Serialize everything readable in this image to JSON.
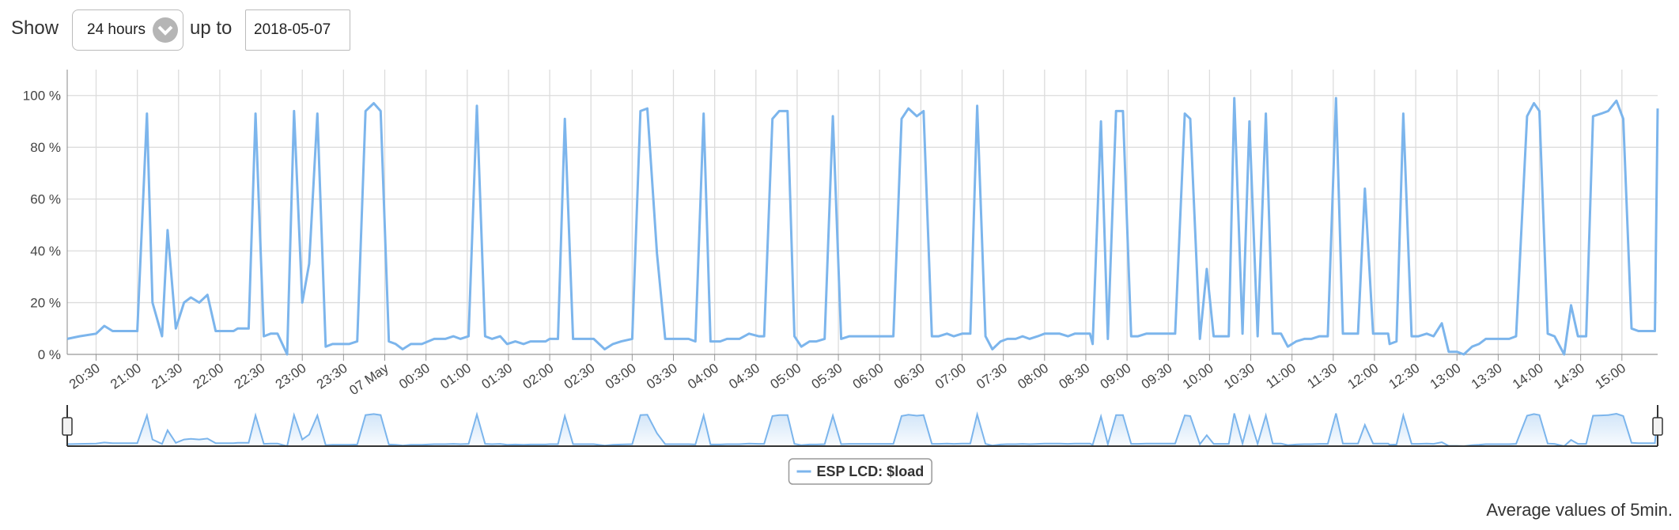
{
  "controls": {
    "show_label": "Show",
    "range": "24 hours",
    "up_to_label": "up to",
    "date": "2018-05-07"
  },
  "chart_data": {
    "type": "line",
    "x": [
      "20:09",
      "20:18",
      "20:30",
      "20:36",
      "20:42",
      "21:00",
      "21:07",
      "21:11",
      "21:18",
      "21:22",
      "21:28",
      "21:34",
      "21:39",
      "21:45",
      "21:51",
      "21:57",
      "22:10",
      "22:13",
      "22:21",
      "22:26",
      "22:32",
      "22:37",
      "22:42",
      "22:49",
      "22:54",
      "23:00",
      "23:05",
      "23:11",
      "23:17",
      "23:22",
      "23:34",
      "23:40",
      "23:46",
      "23:52",
      "23:57",
      "00:03",
      "00:08",
      "00:13",
      "00:19",
      "00:27",
      "00:36",
      "00:44",
      "00:50",
      "00:55",
      "01:01",
      "01:07",
      "01:13",
      "01:18",
      "01:24",
      "01:29",
      "01:35",
      "01:41",
      "01:46",
      "01:57",
      "02:00",
      "02:06",
      "02:11",
      "02:17",
      "02:32",
      "02:40",
      "02:46",
      "02:52",
      "03:00",
      "03:06",
      "03:11",
      "03:18",
      "03:24",
      "03:41",
      "03:46",
      "03:52",
      "03:57",
      "04:04",
      "04:09",
      "04:18",
      "04:25",
      "04:32",
      "04:36",
      "04:42",
      "04:47",
      "04:53",
      "04:58",
      "05:03",
      "05:09",
      "05:14",
      "05:20",
      "05:26",
      "05:32",
      "05:38",
      "05:59",
      "06:10",
      "06:16",
      "06:21",
      "06:27",
      "06:32",
      "06:38",
      "06:43",
      "06:49",
      "06:54",
      "07:00",
      "07:06",
      "07:11",
      "07:17",
      "07:22",
      "07:28",
      "07:33",
      "07:39",
      "07:44",
      "07:49",
      "07:55",
      "08:00",
      "08:11",
      "08:17",
      "08:22",
      "08:28",
      "08:33",
      "08:35",
      "08:41",
      "08:46",
      "08:52",
      "08:57",
      "09:03",
      "09:08",
      "09:14",
      "09:19",
      "09:35",
      "09:42",
      "09:46",
      "09:53",
      "09:58",
      "10:03",
      "10:14",
      "10:18",
      "10:24",
      "10:29",
      "10:35",
      "10:41",
      "10:46",
      "10:52",
      "10:57",
      "11:03",
      "11:09",
      "11:14",
      "11:20",
      "11:26",
      "11:32",
      "11:37",
      "11:42",
      "11:48",
      "11:53",
      "11:59",
      "12:04",
      "12:10",
      "12:11",
      "12:16",
      "12:21",
      "12:27",
      "12:32",
      "12:38",
      "12:43",
      "12:49",
      "12:54",
      "13:00",
      "13:05",
      "13:11",
      "13:16",
      "13:21",
      "13:38",
      "13:43",
      "13:51",
      "13:56",
      "14:00",
      "14:06",
      "14:11",
      "14:18",
      "14:23",
      "14:28",
      "14:34",
      "14:39",
      "14:45",
      "14:50",
      "14:56",
      "15:01",
      "15:07",
      "15:12",
      "15:24",
      "15:26"
    ],
    "series": [
      {
        "name": "ESP LCD: $load",
        "color": "#7cb5ec",
        "values": [
          6,
          7,
          8,
          11,
          9,
          9,
          93,
          20,
          7,
          48,
          10,
          20,
          22,
          20,
          23,
          9,
          9,
          10,
          10,
          93,
          7,
          8,
          8,
          0,
          94,
          20,
          35,
          93,
          3,
          4,
          4,
          5,
          94,
          97,
          94,
          5,
          4,
          2,
          4,
          4,
          6,
          6,
          7,
          6,
          7,
          96,
          7,
          6,
          7,
          4,
          5,
          4,
          5,
          5,
          6,
          6,
          91,
          6,
          6,
          2,
          4,
          5,
          6,
          94,
          95,
          39,
          6,
          6,
          5,
          93,
          5,
          5,
          6,
          6,
          8,
          7,
          7,
          91,
          94,
          94,
          7,
          3,
          5,
          5,
          6,
          92,
          6,
          7,
          7,
          7,
          91,
          95,
          92,
          94,
          7,
          7,
          8,
          7,
          8,
          8,
          96,
          7,
          2,
          5,
          6,
          6,
          7,
          6,
          7,
          8,
          8,
          7,
          8,
          8,
          8,
          4,
          90,
          6,
          94,
          94,
          7,
          7,
          8,
          8,
          8,
          93,
          91,
          6,
          33,
          7,
          7,
          99,
          8,
          90,
          7,
          93,
          8,
          8,
          3,
          5,
          6,
          6,
          7,
          7,
          99,
          8,
          8,
          8,
          64,
          8,
          8,
          8,
          4,
          5,
          93,
          7,
          7,
          8,
          7,
          12,
          1,
          1,
          0,
          3,
          4,
          6,
          6,
          7,
          92,
          97,
          94,
          8,
          7,
          0,
          19,
          7,
          7,
          92,
          93,
          94,
          98,
          91,
          10,
          9,
          9,
          95
        ]
      }
    ],
    "xlim": [
      "20:09",
      "15:26"
    ],
    "xticks": [
      "20:30",
      "21:00",
      "21:30",
      "22:00",
      "22:30",
      "23:00",
      "23:30",
      {
        "value": "00:00",
        "label": "07 May"
      },
      "00:30",
      "01:00",
      "01:30",
      "02:00",
      "02:30",
      "03:00",
      "03:30",
      "04:00",
      "04:30",
      "05:00",
      "05:30",
      "06:00",
      "06:30",
      "07:00",
      "07:30",
      "08:00",
      "08:30",
      "09:00",
      "09:30",
      "10:00",
      "10:30",
      "11:00",
      "11:30",
      "12:00",
      "12:30",
      "13:00",
      "13:30",
      "14:00",
      "14:30",
      "15:00"
    ],
    "ylim": [
      0,
      110
    ],
    "yticks": [
      {
        "value": 0,
        "label": "0 %"
      },
      {
        "value": 20,
        "label": "20 %"
      },
      {
        "value": 40,
        "label": "40 %"
      },
      {
        "value": 60,
        "label": "60 %"
      },
      {
        "value": 80,
        "label": "80 %"
      },
      {
        "value": 100,
        "label": "100 %"
      }
    ],
    "grid": true,
    "legend": "bottom"
  },
  "footer": "Average values of 5min."
}
